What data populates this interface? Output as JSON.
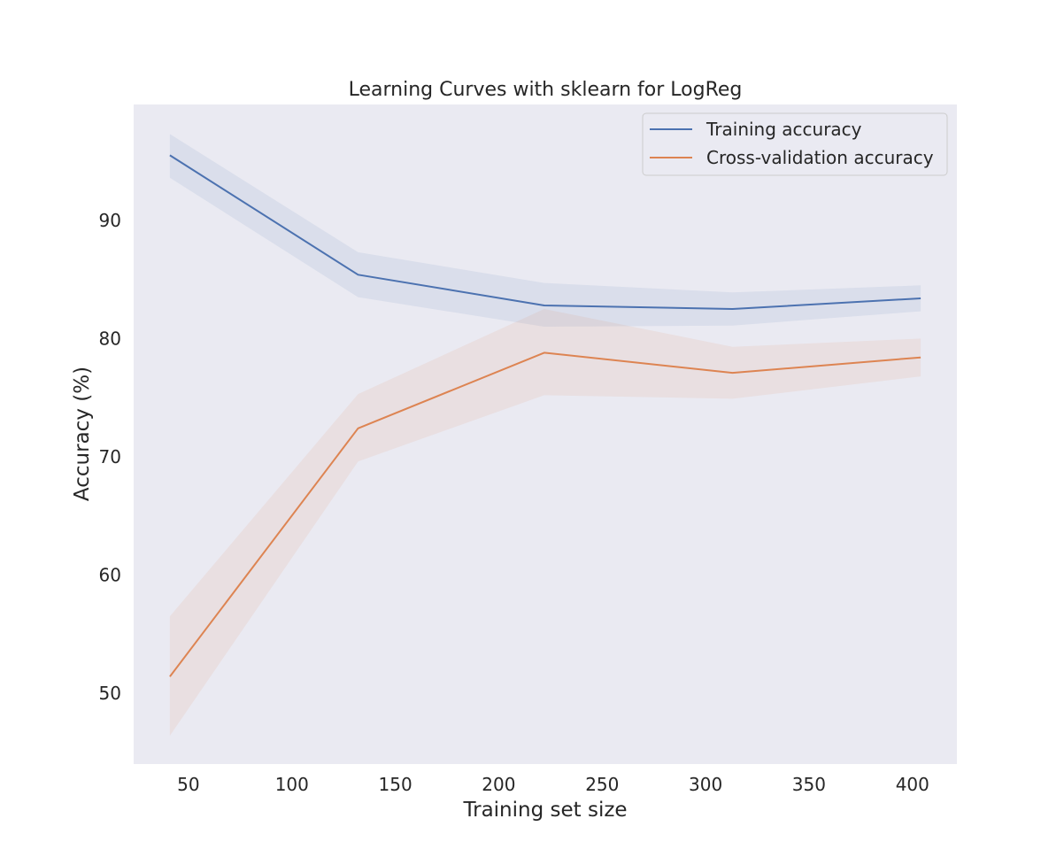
{
  "chart_data": {
    "type": "line",
    "title": "Learning Curves with sklearn for LogReg",
    "xlabel": "Training set size",
    "ylabel": "Accuracy (%)",
    "xlim": [
      23.5,
      421.5
    ],
    "ylim": [
      44.0,
      99.8
    ],
    "xticks": [
      50,
      100,
      150,
      200,
      250,
      300,
      350,
      400
    ],
    "yticks": [
      50,
      60,
      70,
      80,
      90
    ],
    "grid": false,
    "legend_position": "upper right",
    "x": [
      41,
      132,
      222,
      313,
      404
    ],
    "series": [
      {
        "name": "Training accuracy",
        "color": "#4c72b0",
        "band_color": "#4c72b0",
        "mean": [
          95.5,
          85.4,
          82.8,
          82.5,
          83.4
        ],
        "lower": [
          93.6,
          83.5,
          81.0,
          81.1,
          82.3
        ],
        "upper": [
          97.3,
          87.3,
          84.7,
          83.9,
          84.5
        ]
      },
      {
        "name": "Cross-validation accuracy",
        "color": "#dd8452",
        "band_color": "#dd8452",
        "mean": [
          51.4,
          72.4,
          78.8,
          77.1,
          78.4
        ],
        "lower": [
          46.4,
          69.6,
          75.2,
          74.9,
          76.8
        ],
        "upper": [
          56.5,
          75.3,
          82.5,
          79.3,
          80.0
        ]
      }
    ]
  }
}
